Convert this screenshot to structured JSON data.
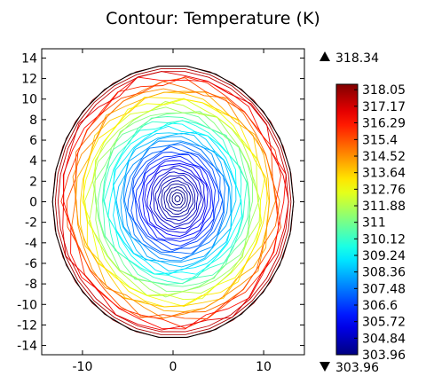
{
  "chart_data": {
    "type": "contour",
    "title": "Contour: Temperature (K)",
    "xlim": [
      -14.5,
      14.5
    ],
    "ylim": [
      -14.9,
      14.9
    ],
    "x_ticks": [
      "-10",
      "0",
      "10"
    ],
    "x_tick_values": [
      -10,
      0,
      10
    ],
    "y_ticks": [
      "14",
      "12",
      "10",
      "8",
      "6",
      "4",
      "2",
      "0",
      "-2",
      "-4",
      "-6",
      "-8",
      "-10",
      "-12",
      "-14"
    ],
    "y_tick_values": [
      14,
      12,
      10,
      8,
      6,
      4,
      2,
      0,
      -2,
      -4,
      -6,
      -8,
      -10,
      -12,
      -14
    ],
    "domain": "circular disk of radius about 13.3 centered at (0, 0)",
    "colormap": "jet",
    "color_range": {
      "min": 303.96,
      "max": 318.34
    },
    "max_label": "318.34",
    "min_label": "303.96",
    "colorbar_labels": [
      "318.05",
      "317.17",
      "316.29",
      "315.4",
      "314.52",
      "313.64",
      "312.76",
      "311.88",
      "311",
      "310.12",
      "309.24",
      "308.36",
      "307.48",
      "306.6",
      "305.72",
      "304.84",
      "303.96"
    ],
    "colorbar_values": [
      318.05,
      317.17,
      316.29,
      315.4,
      314.52,
      313.64,
      312.76,
      311.88,
      311,
      310.12,
      309.24,
      308.36,
      307.48,
      306.6,
      305.72,
      304.84,
      303.96
    ],
    "center_x": 0.5,
    "center_y": 0.3,
    "grid": false
  }
}
